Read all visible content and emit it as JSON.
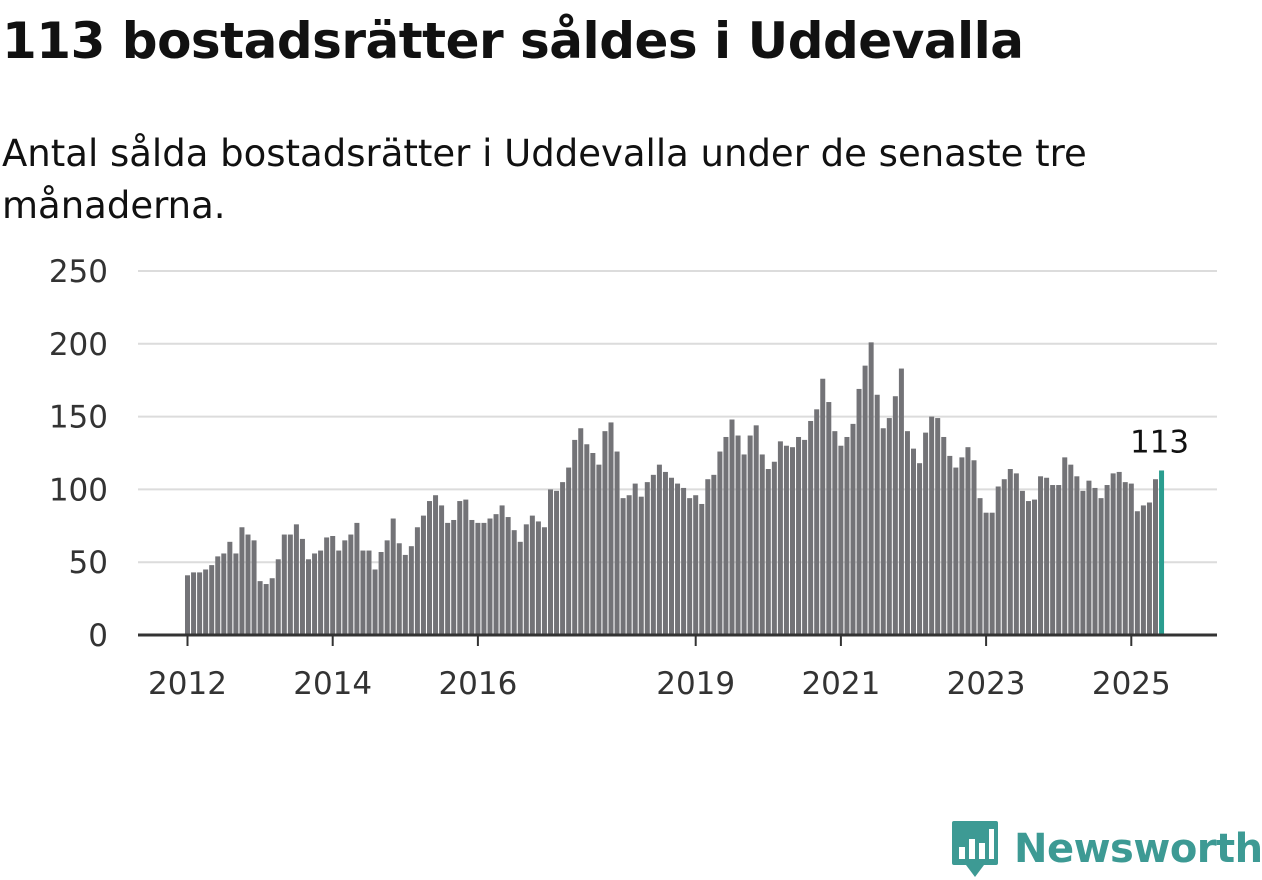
{
  "brand": {
    "name": "Newsworthy",
    "logo_icon": "bar-chart-speech-bubble-icon",
    "color": "#3d9a94"
  },
  "chart_data": {
    "type": "bar",
    "title": "113 bostadsrätter såldes i Uddevalla",
    "subtitle": "Antal sålda bostadsrätter i Uddevalla under de senaste tre månaderna.",
    "xlabel": "",
    "ylabel": "",
    "ylim": [
      0,
      250
    ],
    "yticks": [
      "0",
      "50",
      "100",
      "150",
      "200",
      "250"
    ],
    "xticks": [
      {
        "label": "2012",
        "index": 0
      },
      {
        "label": "2014",
        "index": 24
      },
      {
        "label": "2016",
        "index": 48
      },
      {
        "label": "2019",
        "index": 84
      },
      {
        "label": "2021",
        "index": 108
      },
      {
        "label": "2023",
        "index": 132
      },
      {
        "label": "2025",
        "index": 156
      }
    ],
    "grid": true,
    "legend": "none",
    "bar_color": "#737377",
    "highlight_color": "#2a9d8f",
    "highlight_index": 161,
    "highlight_label": "113",
    "values": [
      41,
      43,
      43,
      45,
      48,
      54,
      56,
      64,
      56,
      74,
      69,
      65,
      37,
      35,
      39,
      52,
      69,
      69,
      76,
      66,
      52,
      56,
      58,
      67,
      68,
      58,
      65,
      69,
      77,
      58,
      58,
      45,
      57,
      65,
      80,
      63,
      55,
      61,
      74,
      82,
      92,
      96,
      89,
      77,
      79,
      92,
      93,
      79,
      77,
      77,
      80,
      83,
      89,
      81,
      72,
      64,
      76,
      82,
      78,
      74,
      100,
      99,
      105,
      115,
      134,
      142,
      131,
      125,
      117,
      140,
      146,
      126,
      94,
      96,
      104,
      95,
      105,
      110,
      117,
      112,
      108,
      104,
      101,
      94,
      96,
      90,
      107,
      110,
      126,
      136,
      148,
      137,
      124,
      137,
      144,
      124,
      114,
      119,
      133,
      130,
      129,
      136,
      134,
      147,
      155,
      176,
      160,
      140,
      130,
      136,
      145,
      169,
      185,
      201,
      165,
      142,
      149,
      164,
      183,
      140,
      128,
      118,
      139,
      150,
      149,
      136,
      123,
      115,
      122,
      129,
      120,
      94,
      84,
      84,
      102,
      107,
      114,
      111,
      99,
      92,
      93,
      109,
      108,
      103,
      103,
      122,
      117,
      109,
      99,
      106,
      101,
      94,
      103,
      111,
      112,
      105,
      104,
      85,
      89,
      91,
      107,
      113
    ]
  }
}
